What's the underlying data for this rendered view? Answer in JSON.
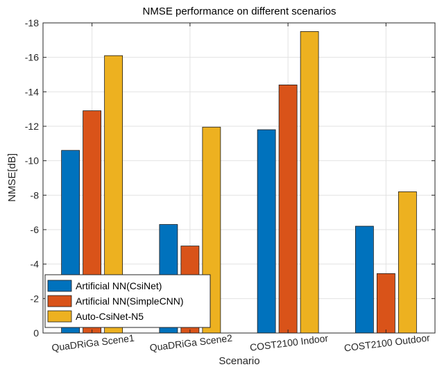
{
  "chart_data": {
    "type": "bar",
    "title": "NMSE performance on different scenarios",
    "xlabel": "Scenario",
    "ylabel": "NMSE[dB]",
    "categories": [
      "QuaDRiGa Scene1",
      "QuaDRiGa Scene2",
      "COST2100 Indoor",
      "COST2100 Outdoor"
    ],
    "series": [
      {
        "name": "Artificial NN(CsiNet)",
        "color": "#0072BD",
        "values": [
          -10.6,
          -6.3,
          -11.8,
          -6.2
        ]
      },
      {
        "name": "Artificial NN(SimpleCNN)",
        "color": "#D95319",
        "values": [
          -12.9,
          -5.05,
          -14.4,
          -3.45
        ]
      },
      {
        "name": "Auto-CsiNet-N5",
        "color": "#EDB120",
        "values": [
          -16.1,
          -11.95,
          -17.5,
          -8.2
        ]
      }
    ],
    "ylim": [
      0,
      -18
    ],
    "yticks": [
      0,
      -2,
      -4,
      -6,
      -8,
      -10,
      -12,
      -14,
      -16,
      -18
    ],
    "y_axis_reversed": true,
    "grid": true,
    "legend_position": "bottom-left"
  }
}
